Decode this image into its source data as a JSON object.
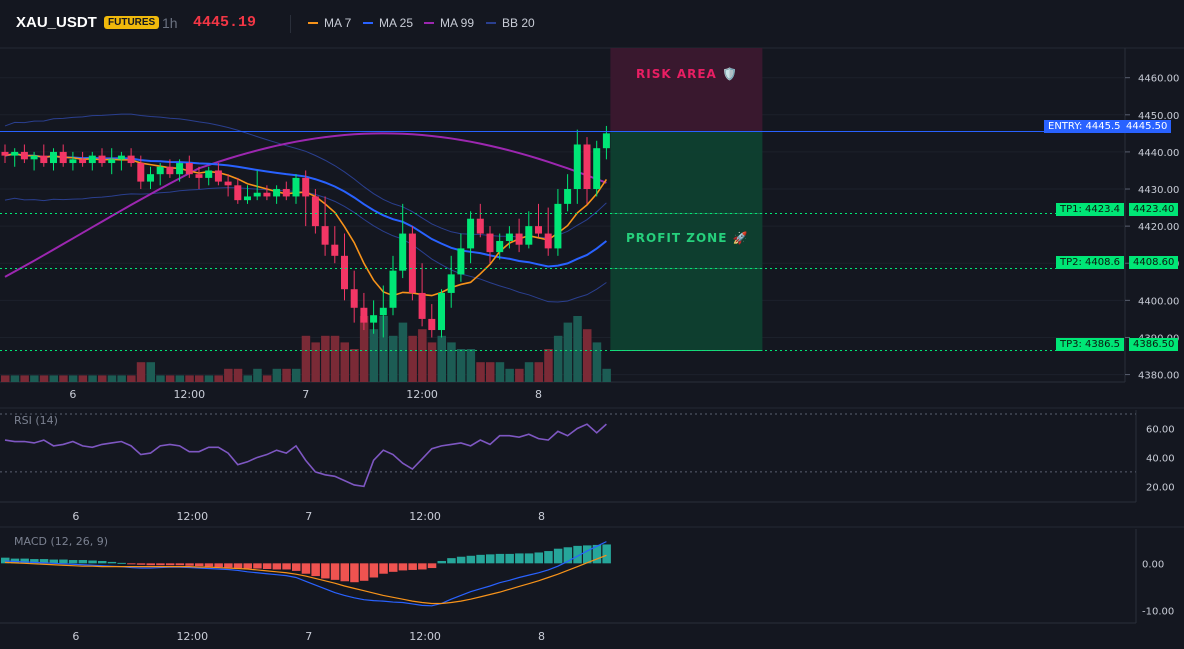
{
  "header": {
    "symbol": "XAU_USDT",
    "badge": "FUTURES",
    "timeframe": "1h",
    "price": "4445.19",
    "legend": [
      {
        "label": "MA 7",
        "color": "#f7931a"
      },
      {
        "label": "MA 25",
        "color": "#2962ff"
      },
      {
        "label": "MA 99",
        "color": "#9c27b0"
      },
      {
        "label": "BB 20",
        "color": "#2a3f8f"
      }
    ]
  },
  "zones": {
    "risk_label": "RISK AREA 🛡️",
    "profit_label": "PROFIT ZONE 🚀"
  },
  "levels": {
    "entry": {
      "tag": "ENTRY: 4445.5",
      "price_label": "4445.50",
      "value": 4445.5
    },
    "tp1": {
      "tag": "TP1: 4423.4",
      "price_label": "4423.40",
      "value": 4423.4
    },
    "tp2": {
      "tag": "TP2: 4408.6",
      "price_label": "4408.60",
      "value": 4408.6
    },
    "tp3": {
      "tag": "TP3: 4386.5",
      "price_label": "4386.50",
      "value": 4386.5
    },
    "risk_top": 4465
  },
  "panes": {
    "rsi_label": "RSI (14)",
    "macd_label": "MACD (12, 26, 9)"
  },
  "chart_data": {
    "type": "candlestick",
    "x_ticks": [
      {
        "label": "6",
        "index": 7
      },
      {
        "label": "12:00",
        "index": 19
      },
      {
        "label": "7",
        "index": 31
      },
      {
        "label": "12:00",
        "index": 43
      },
      {
        "label": "8",
        "index": 55
      }
    ],
    "price_axis": {
      "ticks": [
        "4380.00",
        "4390.00",
        "4400.00",
        "4410.00",
        "4420.00",
        "4430.00",
        "4440.00",
        "4450.00",
        "4460.00"
      ],
      "tick_values": [
        4380,
        4390,
        4400,
        4410,
        4420,
        4430,
        4440,
        4450,
        4460
      ],
      "range": [
        4378,
        4468
      ]
    },
    "candles": [
      {
        "o": 4440,
        "h": 4442,
        "l": 4437,
        "c": 4439,
        "v": 1
      },
      {
        "o": 4439,
        "h": 4441,
        "l": 4436,
        "c": 4440,
        "v": 1
      },
      {
        "o": 4440,
        "h": 4442,
        "l": 4437,
        "c": 4438,
        "v": 1
      },
      {
        "o": 4438,
        "h": 4440,
        "l": 4435,
        "c": 4439,
        "v": 1
      },
      {
        "o": 4439,
        "h": 4442,
        "l": 4436,
        "c": 4437,
        "v": 1
      },
      {
        "o": 4437,
        "h": 4441,
        "l": 4435,
        "c": 4440,
        "v": 1
      },
      {
        "o": 4440,
        "h": 4442,
        "l": 4436,
        "c": 4437,
        "v": 1
      },
      {
        "o": 4437,
        "h": 4440,
        "l": 4435,
        "c": 4438,
        "v": 1
      },
      {
        "o": 4438,
        "h": 4440,
        "l": 4436,
        "c": 4437,
        "v": 1
      },
      {
        "o": 4437,
        "h": 4440,
        "l": 4435,
        "c": 4439,
        "v": 1
      },
      {
        "o": 4439,
        "h": 4441,
        "l": 4436,
        "c": 4437,
        "v": 1
      },
      {
        "o": 4437,
        "h": 4441,
        "l": 4434,
        "c": 4438,
        "v": 1
      },
      {
        "o": 4438,
        "h": 4440,
        "l": 4435,
        "c": 4439,
        "v": 1
      },
      {
        "o": 4439,
        "h": 4441,
        "l": 4436,
        "c": 4437,
        "v": 1
      },
      {
        "o": 4437,
        "h": 4439,
        "l": 4430,
        "c": 4432,
        "v": 3
      },
      {
        "o": 4432,
        "h": 4436,
        "l": 4430,
        "c": 4434,
        "v": 3
      },
      {
        "o": 4434,
        "h": 4437,
        "l": 4431,
        "c": 4436,
        "v": 1
      },
      {
        "o": 4436,
        "h": 4438,
        "l": 4433,
        "c": 4434,
        "v": 1
      },
      {
        "o": 4434,
        "h": 4438,
        "l": 4432,
        "c": 4437,
        "v": 1
      },
      {
        "o": 4437,
        "h": 4439,
        "l": 4433,
        "c": 4434,
        "v": 1
      },
      {
        "o": 4434,
        "h": 4436,
        "l": 4430,
        "c": 4433,
        "v": 1
      },
      {
        "o": 4433,
        "h": 4436,
        "l": 4431,
        "c": 4435,
        "v": 1
      },
      {
        "o": 4435,
        "h": 4437,
        "l": 4431,
        "c": 4432,
        "v": 1
      },
      {
        "o": 4432,
        "h": 4434,
        "l": 4428,
        "c": 4431,
        "v": 2
      },
      {
        "o": 4431,
        "h": 4433,
        "l": 4426,
        "c": 4427,
        "v": 2
      },
      {
        "o": 4427,
        "h": 4431,
        "l": 4426,
        "c": 4428,
        "v": 1
      },
      {
        "o": 4428,
        "h": 4435,
        "l": 4427,
        "c": 4429,
        "v": 2
      },
      {
        "o": 4429,
        "h": 4431,
        "l": 4427,
        "c": 4428,
        "v": 1
      },
      {
        "o": 4428,
        "h": 4431,
        "l": 4426,
        "c": 4430,
        "v": 2
      },
      {
        "o": 4430,
        "h": 4432,
        "l": 4427,
        "c": 4428,
        "v": 2
      },
      {
        "o": 4428,
        "h": 4434,
        "l": 4426,
        "c": 4433,
        "v": 2
      },
      {
        "o": 4433,
        "h": 4435,
        "l": 4420,
        "c": 4428,
        "v": 7
      },
      {
        "o": 4428,
        "h": 4430,
        "l": 4418,
        "c": 4420,
        "v": 6
      },
      {
        "o": 4420,
        "h": 4428,
        "l": 4412,
        "c": 4415,
        "v": 7
      },
      {
        "o": 4415,
        "h": 4420,
        "l": 4410,
        "c": 4412,
        "v": 7
      },
      {
        "o": 4412,
        "h": 4418,
        "l": 4400,
        "c": 4403,
        "v": 6
      },
      {
        "o": 4403,
        "h": 4408,
        "l": 4394,
        "c": 4398,
        "v": 5
      },
      {
        "o": 4398,
        "h": 4402,
        "l": 4392,
        "c": 4394,
        "v": 10
      },
      {
        "o": 4394,
        "h": 4400,
        "l": 4391,
        "c": 4396,
        "v": 8
      },
      {
        "o": 4396,
        "h": 4404,
        "l": 4390,
        "c": 4398,
        "v": 10
      },
      {
        "o": 4398,
        "h": 4412,
        "l": 4396,
        "c": 4408,
        "v": 7
      },
      {
        "o": 4408,
        "h": 4426,
        "l": 4406,
        "c": 4418,
        "v": 9
      },
      {
        "o": 4418,
        "h": 4420,
        "l": 4400,
        "c": 4402,
        "v": 7
      },
      {
        "o": 4402,
        "h": 4410,
        "l": 4393,
        "c": 4395,
        "v": 8
      },
      {
        "o": 4395,
        "h": 4399,
        "l": 4390,
        "c": 4392,
        "v": 6
      },
      {
        "o": 4392,
        "h": 4403,
        "l": 4390,
        "c": 4402,
        "v": 7
      },
      {
        "o": 4402,
        "h": 4412,
        "l": 4398,
        "c": 4407,
        "v": 6
      },
      {
        "o": 4407,
        "h": 4418,
        "l": 4405,
        "c": 4414,
        "v": 5
      },
      {
        "o": 4414,
        "h": 4424,
        "l": 4410,
        "c": 4422,
        "v": 5
      },
      {
        "o": 4422,
        "h": 4426,
        "l": 4417,
        "c": 4418,
        "v": 3
      },
      {
        "o": 4418,
        "h": 4420,
        "l": 4410,
        "c": 4413,
        "v": 3
      },
      {
        "o": 4413,
        "h": 4418,
        "l": 4411,
        "c": 4416,
        "v": 3
      },
      {
        "o": 4416,
        "h": 4420,
        "l": 4414,
        "c": 4418,
        "v": 2
      },
      {
        "o": 4418,
        "h": 4422,
        "l": 4413,
        "c": 4415,
        "v": 2
      },
      {
        "o": 4415,
        "h": 4424,
        "l": 4414,
        "c": 4420,
        "v": 3
      },
      {
        "o": 4420,
        "h": 4426,
        "l": 4417,
        "c": 4418,
        "v": 3
      },
      {
        "o": 4418,
        "h": 4425,
        "l": 4412,
        "c": 4414,
        "v": 5
      },
      {
        "o": 4414,
        "h": 4430,
        "l": 4412,
        "c": 4426,
        "v": 7
      },
      {
        "o": 4426,
        "h": 4434,
        "l": 4424,
        "c": 4430,
        "v": 9
      },
      {
        "o": 4430,
        "h": 4446,
        "l": 4426,
        "c": 4442,
        "v": 10
      },
      {
        "o": 4442,
        "h": 4444,
        "l": 4426,
        "c": 4430,
        "v": 8
      },
      {
        "o": 4430,
        "h": 4443,
        "l": 4428,
        "c": 4441,
        "v": 6
      },
      {
        "o": 4441,
        "h": 4447,
        "l": 4438,
        "c": 4445,
        "v": 2
      }
    ],
    "rsi": {
      "axis_ticks": [
        "20.00",
        "40.00",
        "60.00"
      ],
      "tick_values": [
        20,
        40,
        60
      ],
      "range": [
        12,
        70
      ],
      "overbought": 70,
      "oversold": 30,
      "values": [
        52,
        51,
        51,
        50,
        52,
        48,
        49,
        51,
        48,
        47,
        49,
        50,
        51,
        48,
        42,
        43,
        48,
        49,
        48,
        44,
        44,
        47,
        47,
        43,
        35,
        37,
        40,
        42,
        45,
        43,
        48,
        38,
        30,
        28,
        27,
        24,
        21,
        20,
        38,
        45,
        42,
        36,
        32,
        39,
        46,
        48,
        49,
        50,
        48,
        52,
        49,
        55,
        55,
        54,
        56,
        53,
        52,
        58,
        55,
        60,
        63,
        57,
        63
      ]
    },
    "macd": {
      "axis_ticks": [
        "0.00",
        "-10.00"
      ],
      "tick_values": [
        0,
        -10
      ],
      "range": [
        -12,
        6
      ],
      "histogram": [
        1.2,
        1.0,
        1.0,
        0.9,
        0.9,
        0.8,
        0.8,
        0.7,
        0.7,
        0.6,
        0.5,
        0.3,
        0.1,
        -0.2,
        -0.3,
        -0.4,
        -0.4,
        -0.4,
        -0.4,
        -0.5,
        -0.6,
        -0.7,
        -0.8,
        -0.9,
        -1.0,
        -1.1,
        -1.1,
        -1.2,
        -1.3,
        -1.3,
        -1.6,
        -2.2,
        -2.7,
        -3.2,
        -3.5,
        -3.8,
        -4.0,
        -3.7,
        -3.0,
        -2.2,
        -1.8,
        -1.5,
        -1.4,
        -1.3,
        -1.0,
        0.5,
        1.1,
        1.4,
        1.6,
        1.8,
        1.9,
        2.0,
        2.0,
        2.1,
        2.1,
        2.3,
        2.6,
        3.1,
        3.4,
        3.7,
        3.8,
        3.9,
        4.0
      ],
      "macd_line": [
        0.5,
        0.4,
        0.3,
        0.2,
        0.1,
        0.0,
        -0.1,
        -0.2,
        -0.3,
        -0.4,
        -0.5,
        -0.6,
        -0.7,
        -0.9,
        -1.0,
        -1.0,
        -0.9,
        -0.8,
        -0.8,
        -0.9,
        -1.0,
        -1.1,
        -1.2,
        -1.3,
        -1.5,
        -1.8,
        -2.0,
        -2.2,
        -2.4,
        -2.6,
        -3.0,
        -3.8,
        -4.6,
        -5.4,
        -6.2,
        -6.8,
        -7.3,
        -7.7,
        -7.9,
        -8.0,
        -8.2,
        -8.3,
        -8.6,
        -8.9,
        -9.0,
        -8.5,
        -7.6,
        -6.8,
        -6.0,
        -5.4,
        -4.8,
        -4.1,
        -3.6,
        -3.0,
        -2.5,
        -2.0,
        -1.4,
        -0.6,
        0.4,
        1.5,
        2.6,
        3.6,
        4.6
      ],
      "signal_line": [
        0.2,
        0.1,
        0.0,
        -0.1,
        -0.2,
        -0.3,
        -0.4,
        -0.5,
        -0.6,
        -0.6,
        -0.7,
        -0.7,
        -0.7,
        -0.7,
        -0.7,
        -0.7,
        -0.7,
        -0.7,
        -0.7,
        -0.7,
        -0.8,
        -0.8,
        -0.9,
        -1.0,
        -1.1,
        -1.2,
        -1.4,
        -1.6,
        -1.8,
        -2.0,
        -2.3,
        -2.7,
        -3.2,
        -3.7,
        -4.2,
        -4.8,
        -5.3,
        -5.8,
        -6.3,
        -6.8,
        -7.2,
        -7.6,
        -8.0,
        -8.3,
        -8.5,
        -8.5,
        -8.3,
        -8.0,
        -7.6,
        -7.1,
        -6.6,
        -6.1,
        -5.5,
        -4.9,
        -4.3,
        -3.7,
        -3.0,
        -2.3,
        -1.5,
        -0.7,
        0.1,
        0.9,
        1.7
      ]
    }
  }
}
